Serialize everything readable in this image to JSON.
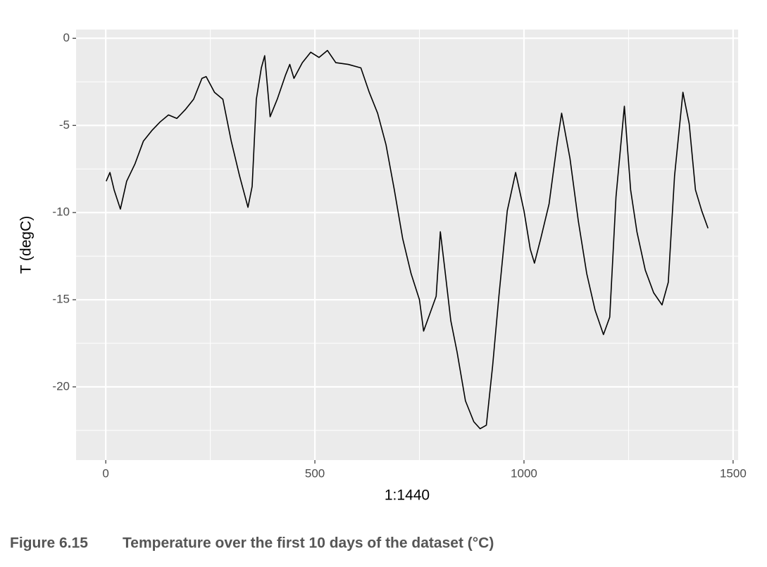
{
  "chart_data": {
    "type": "line",
    "caption_label": "Figure 6.15",
    "caption": "Temperature over the first 10 days of the dataset (°C)",
    "x_label": "1:1440",
    "y_label": "T (degC)",
    "x": [
      1,
      10,
      20,
      35,
      50,
      70,
      90,
      110,
      130,
      150,
      170,
      190,
      210,
      230,
      240,
      260,
      280,
      300,
      320,
      340,
      350,
      360,
      372,
      380,
      393,
      410,
      430,
      440,
      450,
      470,
      490,
      510,
      530,
      550,
      580,
      610,
      630,
      650,
      670,
      690,
      710,
      730,
      750,
      760,
      775,
      790,
      800,
      810,
      825,
      840,
      860,
      880,
      895,
      910,
      925,
      940,
      960,
      980,
      1000,
      1015,
      1025,
      1040,
      1060,
      1080,
      1090,
      1110,
      1130,
      1150,
      1170,
      1190,
      1205,
      1220,
      1240,
      1255,
      1270,
      1290,
      1310,
      1330,
      1345,
      1360,
      1380,
      1395,
      1410,
      1425,
      1440
    ],
    "series": [
      {
        "name": "T (degC)",
        "color": "#000000",
        "values": [
          -8.2,
          -7.7,
          -8.7,
          -9.8,
          -8.2,
          -7.2,
          -5.9,
          -5.3,
          -4.8,
          -4.4,
          -4.6,
          -4.1,
          -3.5,
          -2.3,
          -2.2,
          -3.1,
          -3.5,
          -5.9,
          -7.9,
          -9.7,
          -8.5,
          -3.5,
          -1.7,
          -1.0,
          -4.5,
          -3.5,
          -2.1,
          -1.5,
          -2.3,
          -1.4,
          -0.8,
          -1.1,
          -0.7,
          -1.4,
          -1.5,
          -1.7,
          -3.1,
          -4.3,
          -6.1,
          -8.7,
          -11.5,
          -13.5,
          -15.0,
          -16.8,
          -15.8,
          -14.8,
          -11.1,
          -13.1,
          -16.2,
          -18.0,
          -20.8,
          -22.0,
          -22.4,
          -22.2,
          -18.8,
          -14.8,
          -9.9,
          -7.7,
          -9.9,
          -12.1,
          -12.9,
          -11.5,
          -9.5,
          -5.9,
          -4.3,
          -6.9,
          -10.5,
          -13.5,
          -15.6,
          -17.0,
          -16.0,
          -9.1,
          -3.9,
          -8.7,
          -11.1,
          -13.3,
          -14.6,
          -15.3,
          -14.0,
          -7.9,
          -3.1,
          -4.9,
          -8.7,
          -9.9,
          -10.9
        ]
      }
    ],
    "xlim": [
      -71,
      1512
    ],
    "ylim": [
      -24.2,
      0.5
    ],
    "xticks": [
      0,
      500,
      1000,
      1500
    ],
    "yticks": [
      0,
      -5,
      -10,
      -15,
      -20
    ],
    "x_minor_grid": [
      250,
      750,
      1250
    ],
    "y_minor_grid": [
      -2.5,
      -7.5,
      -12.5,
      -17.5,
      -22.5
    ],
    "grid": true,
    "panel_color": "#ebebeb"
  }
}
